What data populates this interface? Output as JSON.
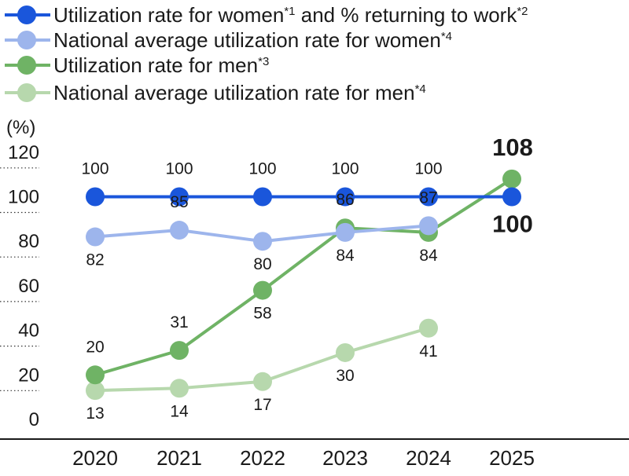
{
  "legend": [
    {
      "text": "Utilization rate for women",
      "sup": "*1",
      "text2": " and % returning to work",
      "sup2": "*2",
      "color": "#1a56db"
    },
    {
      "text": "National average utilization rate for women",
      "sup": "*4",
      "text2": "",
      "sup2": "",
      "color": "#9db5ec"
    },
    {
      "text": "Utilization rate for men",
      "sup": "*3",
      "text2": "",
      "sup2": "",
      "color": "#6fb365"
    },
    {
      "text": "National average utilization rate for men",
      "sup": "*4",
      "text2": "",
      "sup2": "",
      "color": "#b7d8ad"
    }
  ],
  "chart_data": {
    "type": "line",
    "ylabel": "(%)",
    "ylim": [
      0,
      120
    ],
    "yticks": [
      "0",
      "20",
      "40",
      "60",
      "80",
      "100",
      "120"
    ],
    "categories": [
      "2020",
      "2021",
      "2022",
      "2023",
      "2024",
      "2025"
    ],
    "grid": "dotted tick marks at left only",
    "series": [
      {
        "name": "Utilization rate for women and % returning to work",
        "color": "#1a56db",
        "values": [
          100,
          100,
          100,
          100,
          100,
          100
        ],
        "labels": [
          "100",
          "100",
          "100",
          "100",
          "100",
          "100"
        ]
      },
      {
        "name": "National average utilization rate for women",
        "color": "#9db5ec",
        "values": [
          82,
          85,
          80,
          84,
          87,
          null
        ],
        "labels": [
          "82",
          "85",
          "80",
          "84",
          "87",
          ""
        ]
      },
      {
        "name": "Utilization rate for men",
        "color": "#6fb365",
        "values": [
          20,
          31,
          58,
          86,
          84,
          108
        ],
        "labels": [
          "20",
          "31",
          "58",
          "86",
          "84",
          "108"
        ]
      },
      {
        "name": "National average utilization rate for men",
        "color": "#b7d8ad",
        "values": [
          13,
          14,
          17,
          30,
          41,
          null
        ],
        "labels": [
          "13",
          "14",
          "17",
          "30",
          "41",
          ""
        ]
      }
    ]
  }
}
